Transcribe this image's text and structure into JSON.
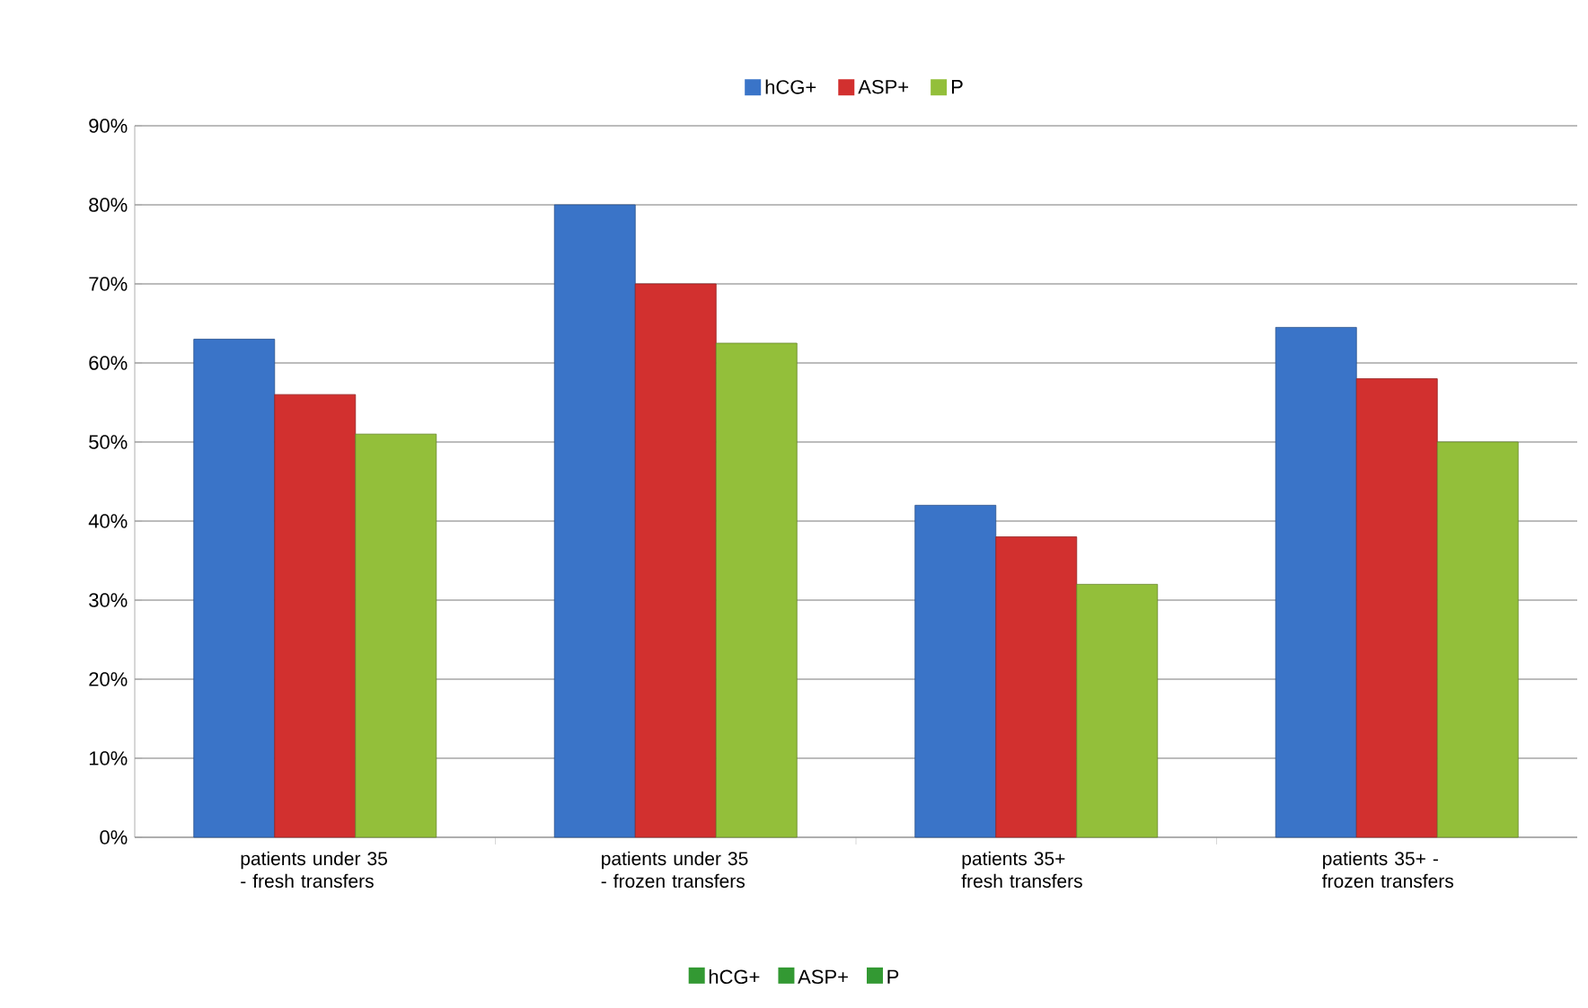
{
  "chart_data": {
    "type": "bar",
    "categories": [
      "patients under 35 - fresh transfers",
      "patients under 35 - frozen transfers",
      "patients 35+ fresh transfers",
      "patients 35+ - frozen transfers"
    ],
    "series": [
      {
        "name": "hCG+",
        "color": "#3a74c8",
        "values": [
          63,
          80,
          42,
          64.5
        ]
      },
      {
        "name": "ASP+",
        "color": "#d2302f",
        "values": [
          56,
          70,
          38,
          58
        ]
      },
      {
        "name": "P",
        "color": "#93bf3a",
        "values": [
          51,
          62.5,
          32,
          50
        ]
      }
    ],
    "ylim": [
      0,
      90
    ],
    "yticks": [
      {
        "value": 0,
        "label": "0%"
      },
      {
        "value": 10,
        "label": "10%"
      },
      {
        "value": 20,
        "label": "20%"
      },
      {
        "value": 30,
        "label": "30%"
      },
      {
        "value": 40,
        "label": "40%"
      },
      {
        "value": 50,
        "label": "50%"
      },
      {
        "value": 60,
        "label": "60%"
      },
      {
        "value": 70,
        "label": "70%"
      },
      {
        "value": 80,
        "label": "80%"
      },
      {
        "value": 90,
        "label": "90%"
      }
    ],
    "grid": "y",
    "legend": "top",
    "annotations": [
      "hCG+",
      "ASP+",
      "P"
    ]
  }
}
